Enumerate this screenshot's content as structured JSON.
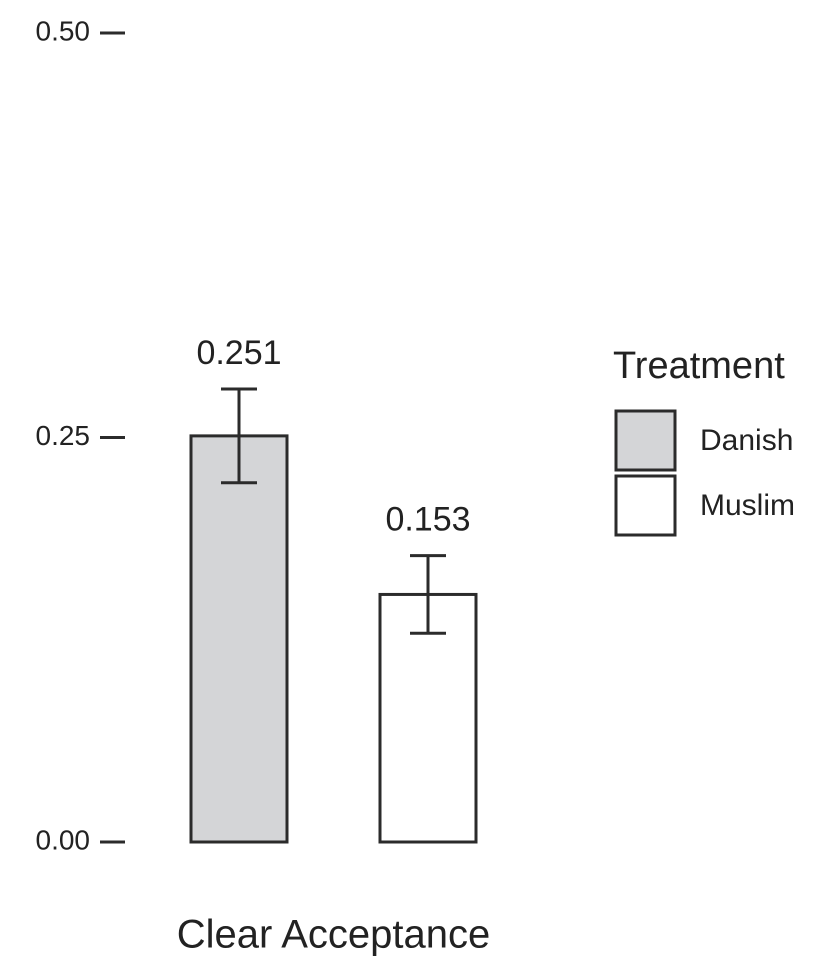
{
  "chart_data": {
    "type": "bar",
    "categories": [
      "Clear Acceptance"
    ],
    "series": [
      {
        "name": "Danish",
        "color": "#d4d5d7",
        "values": [
          0.251
        ],
        "errors": [
          0.029
        ]
      },
      {
        "name": "Muslim",
        "color": "#ffffff",
        "values": [
          0.153
        ],
        "errors": [
          0.024
        ]
      }
    ],
    "legend_title": "Treatment",
    "legend_position": "right",
    "ylim": [
      0,
      0.5
    ],
    "yticks": [
      {
        "value": 0,
        "label": "0.00"
      },
      0.25,
      {
        "value": 0.5,
        "label": "0.50"
      }
    ],
    "grid": false
  }
}
